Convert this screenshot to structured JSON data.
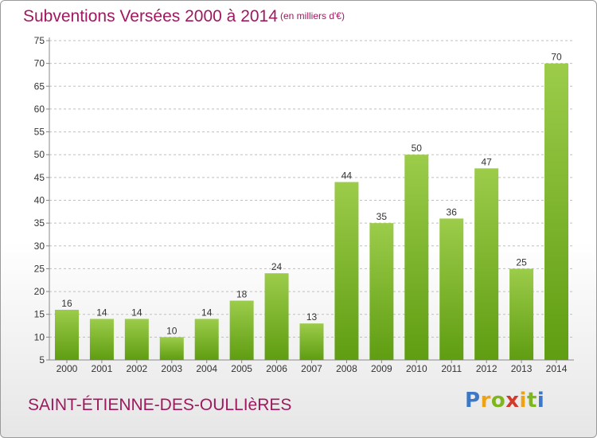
{
  "header": {
    "title": "Subventions Versées 2000 à 2014",
    "unit_note": "(en milliers d'€)"
  },
  "footer": {
    "commune": "SAINT-ÉTIENNE-DES-OULLIèRES",
    "logo_text": "Proxiti"
  },
  "colors": {
    "title": "#a0185f",
    "bar_top": "#9ccc4a",
    "bar_bottom": "#5f9d12",
    "grid": "#bfbfbf"
  },
  "chart_data": {
    "type": "bar",
    "title": "Subventions Versées 2000 à 2014",
    "subtitle": "(en milliers d'€)",
    "xlabel": "",
    "ylabel": "",
    "categories": [
      "2000",
      "2001",
      "2002",
      "2003",
      "2004",
      "2005",
      "2006",
      "2007",
      "2008",
      "2009",
      "2010",
      "2011",
      "2012",
      "2013",
      "2014"
    ],
    "values": [
      16,
      14,
      14,
      10,
      14,
      18,
      24,
      13,
      44,
      35,
      50,
      36,
      47,
      25,
      70
    ],
    "ylim": [
      5,
      75
    ],
    "yticks": [
      5,
      10,
      15,
      20,
      25,
      30,
      35,
      40,
      45,
      50,
      55,
      60,
      65,
      70,
      75
    ],
    "grid": "horizontal-dashed",
    "legend": "none"
  }
}
